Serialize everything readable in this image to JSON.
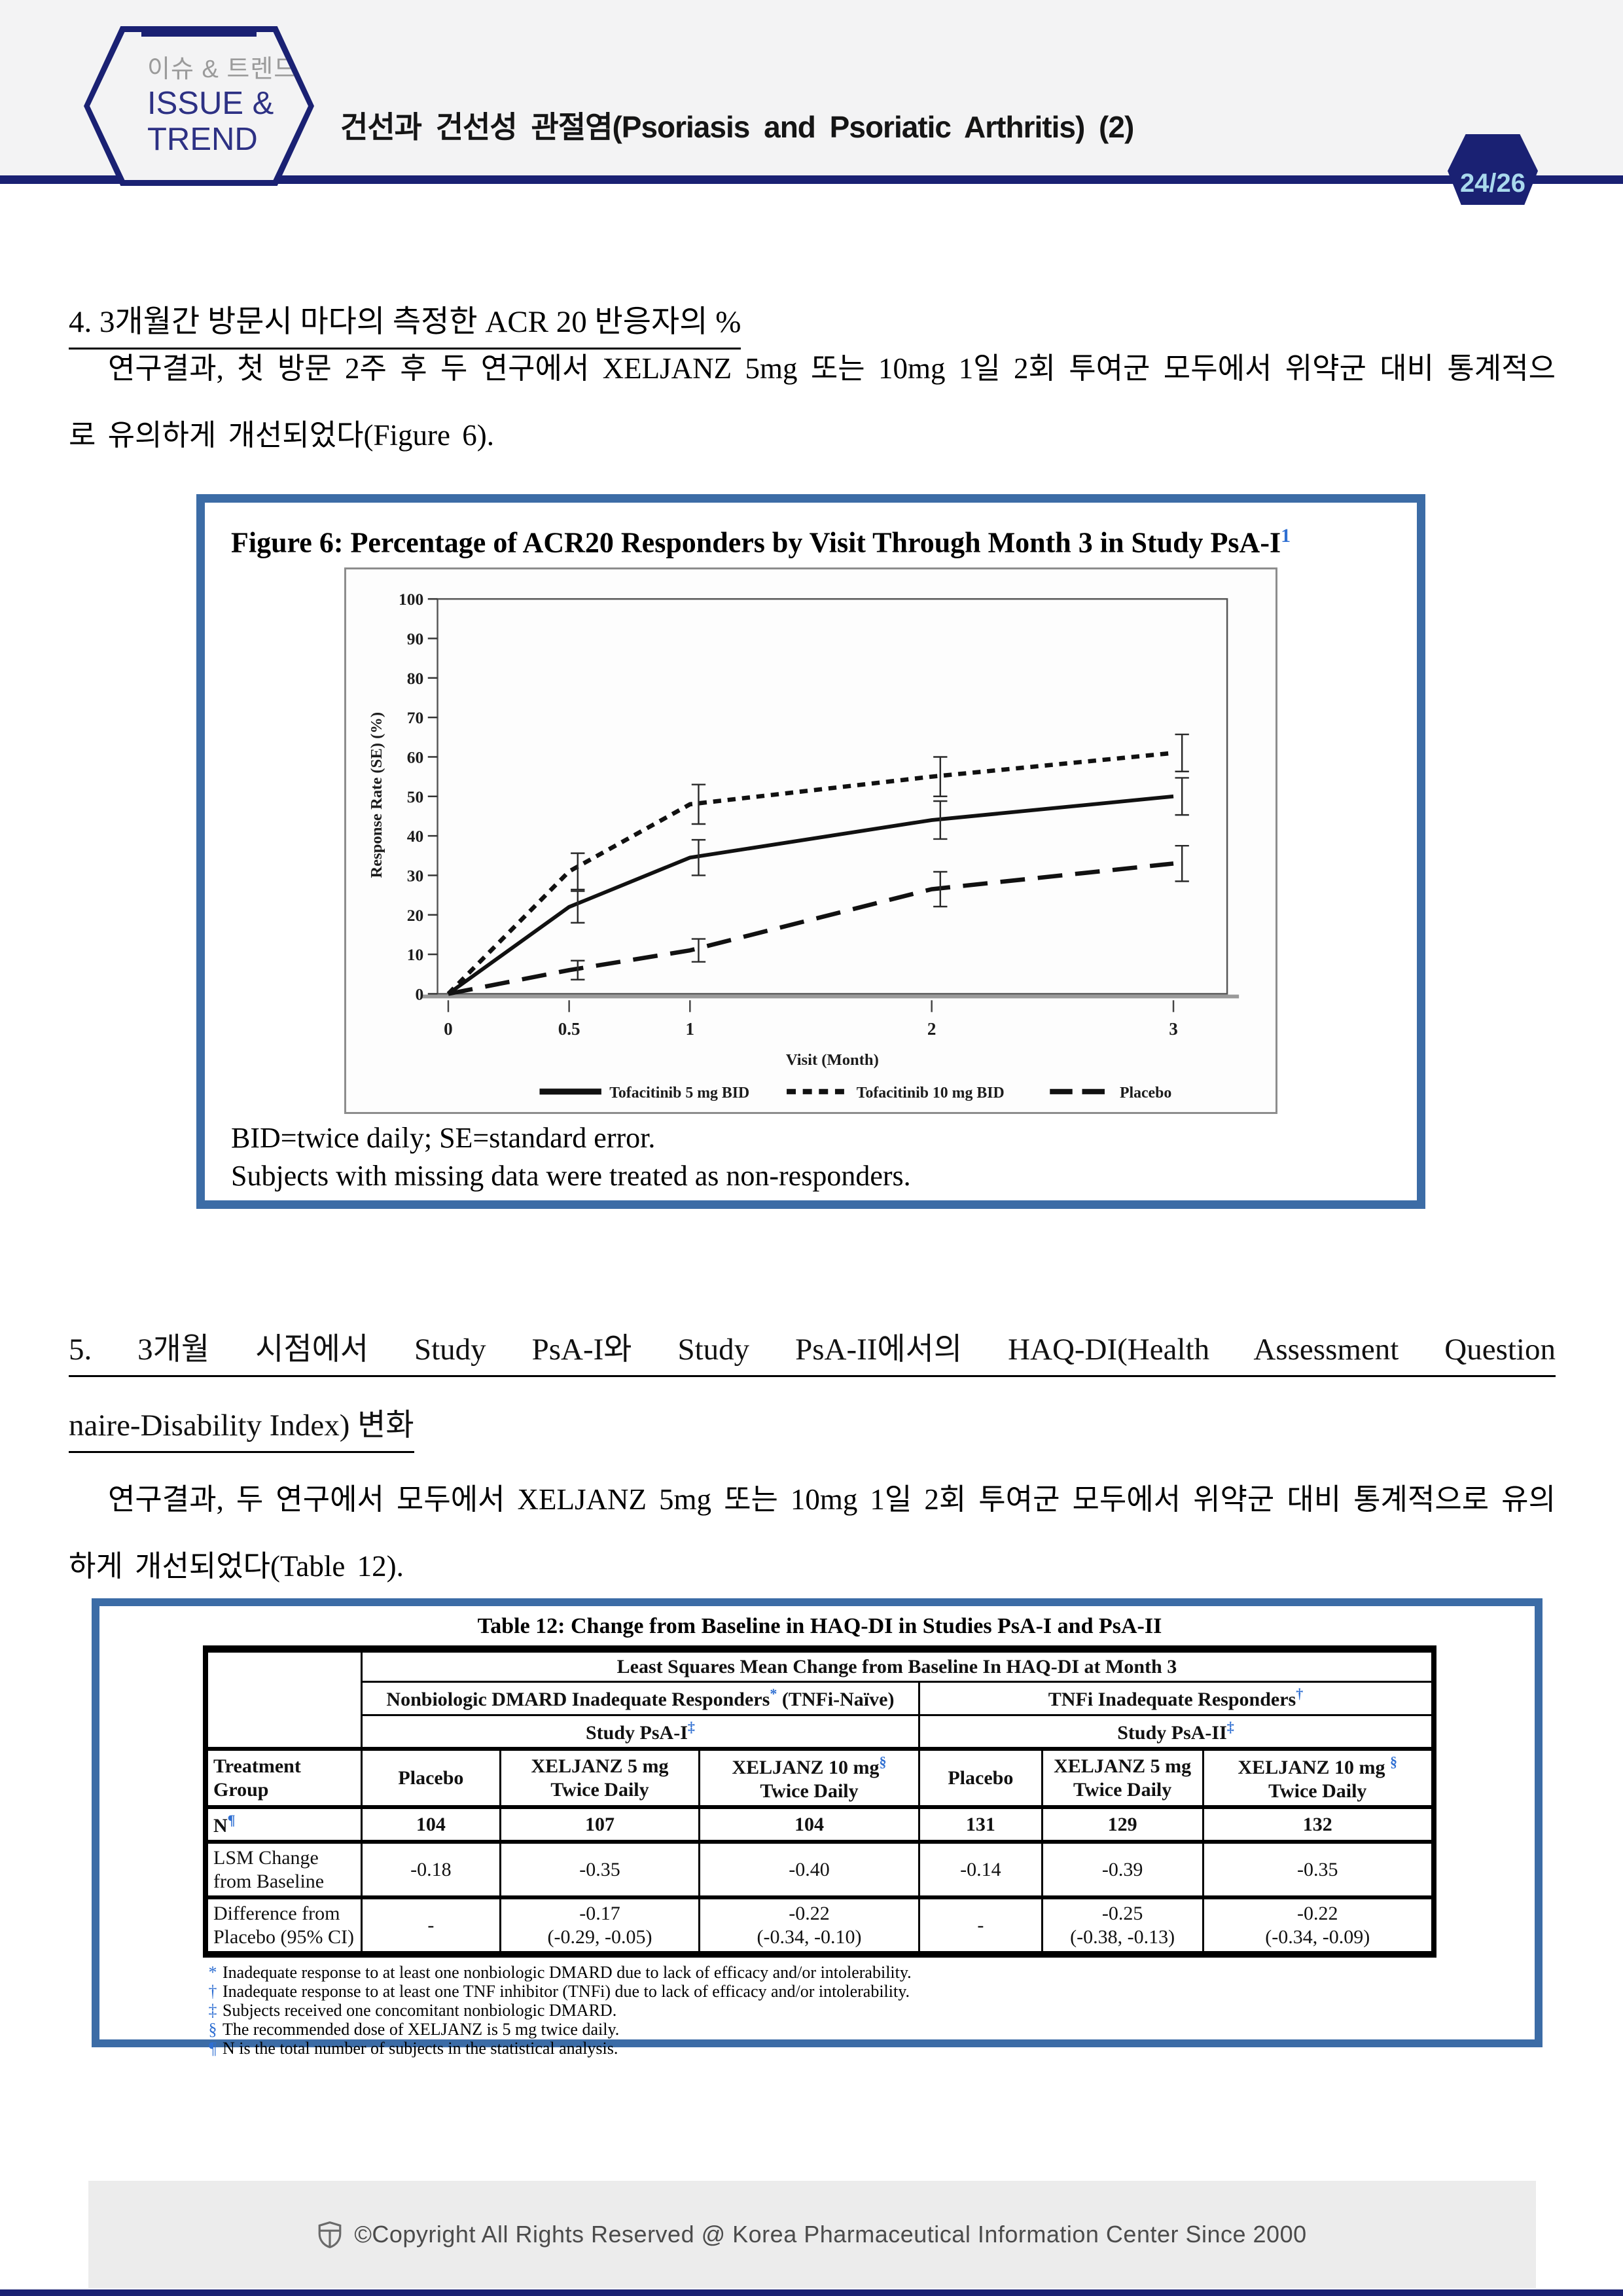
{
  "header": {
    "logo": {
      "line1": "이슈 & 트렌드",
      "line2": "ISSUE &",
      "line3": "TREND"
    },
    "title": "건선과 건선성 관절염(Psoriasis and Psoriatic Arthritis) (2)",
    "page_badge": "24/26",
    "navy_color": "#1a2173"
  },
  "section4": {
    "heading": "4. 3개월간 방문시 마다의 측정한 ACR 20 반응자의 %",
    "paragraph": "연구결과, 첫 방문 2주 후 두 연구에서 XELJANZ 5mg 또는 10mg 1일 2회 투여군 모두에서 위약군 대비 통계적으로 유의하게 개선되었다(Figure 6)."
  },
  "figure6": {
    "title": "Figure 6: Percentage of ACR20 Responders by Visit Through Month 3 in Study PsA-I",
    "title_sup": "1",
    "note_line1": "BID=twice daily; SE=standard error.",
    "note_line2": "Subjects with missing data were treated as non-responders.",
    "border_color": "#3c6ca6"
  },
  "chart_data": {
    "type": "line",
    "title": "Percentage of ACR20 Responders by Visit Through Month 3 in Study PsA-I",
    "xlabel": "Visit (Month)",
    "ylabel": "Response Rate (SE) (%)",
    "x": [
      0,
      0.5,
      1,
      2,
      3
    ],
    "ylim": [
      0,
      100
    ],
    "ytick_step": 10,
    "grid": false,
    "legend_position": "bottom",
    "series": [
      {
        "name": "Tofacitinib 5 mg BID",
        "style": "solid",
        "values": [
          0,
          22,
          34.5,
          44,
          50
        ],
        "se": [
          0,
          4,
          4.5,
          4.8,
          4.7
        ]
      },
      {
        "name": "Tofacitinib 10 mg BID",
        "style": "dotted",
        "values": [
          0,
          31,
          48,
          55,
          61
        ],
        "se": [
          0,
          4.6,
          5,
          5,
          4.7
        ]
      },
      {
        "name": "Placebo",
        "style": "long-dash",
        "values": [
          0,
          6,
          11,
          26.5,
          33
        ],
        "se": [
          0,
          2.4,
          2.9,
          4.4,
          4.5
        ]
      }
    ]
  },
  "section5": {
    "heading_line1": "5. 3개월 시점에서 Study PsA-I와 Study PsA-II에서의 HAQ-DI(Health Assessment Question",
    "heading_line2": "naire-Disability Index) 변화",
    "paragraph": "연구결과,  두 연구에서 모두에서 XELJANZ 5mg 또는 10mg 1일 2회 투여군 모두에서 위약군 대비 통계적으로 유의하게 개선되었다(Table 12)."
  },
  "table12": {
    "title": "Table 12: Change from Baseline in HAQ-DI in Studies PsA-I and PsA-II",
    "span_header": "Least Squares Mean Change from Baseline In HAQ-DI at Month 3",
    "group1": "Nonbiologic DMARD Inadequate Responders",
    "group1_sup": "*",
    "group1_tail": " (TNFi-Naïve)",
    "group2": "TNFi Inadequate Responders",
    "group2_sup": "†",
    "study1": "Study PsA-I",
    "study1_sup": "‡",
    "study2": "Study PsA-II",
    "study2_sup": "‡",
    "col_treatment": "Treatment Group",
    "col_placebo": "Placebo",
    "col_x5_line1": "XELJANZ 5 mg",
    "col_x5_line2": "Twice Daily",
    "col_x10_line1": "XELJANZ 10 mg",
    "col_x10_sup": "§",
    "col_x10_line2": "Twice Daily",
    "rows": {
      "n": {
        "label": "N",
        "sup": "¶",
        "v1": "104",
        "v2": "107",
        "v3": "104",
        "v4": "131",
        "v5": "129",
        "v6": "132"
      },
      "lsm": {
        "label": "LSM Change from Baseline",
        "v1": "-0.18",
        "v2": "-0.35",
        "v3": "-0.40",
        "v4": "-0.14",
        "v5": "-0.39",
        "v6": "-0.35"
      },
      "diff": {
        "label": "Difference from Placebo (95% CI)",
        "v1": "-",
        "v2a": "-0.17",
        "v2b": "(-0.29, -0.05)",
        "v3a": "-0.22",
        "v3b": "(-0.34, -0.10)",
        "v4": "-",
        "v5a": "-0.25",
        "v5b": "(-0.38, -0.13)",
        "v6a": "-0.22",
        "v6b": "(-0.34, -0.09)"
      }
    },
    "footnotes": [
      {
        "mark": "*",
        "text": "Inadequate response to at least one nonbiologic DMARD due to lack of efficacy and/or intolerability."
      },
      {
        "mark": "†",
        "text": "Inadequate response to at least one TNF inhibitor (TNFi) due to lack of efficacy and/or intolerability."
      },
      {
        "mark": "‡",
        "text": "Subjects received one concomitant nonbiologic DMARD."
      },
      {
        "mark": "§",
        "text": "The recommended dose of XELJANZ is 5 mg twice daily."
      },
      {
        "mark": "¶",
        "text": "N is the total number of subjects in the statistical analysis."
      }
    ],
    "accent_blue": "#2f6fd2"
  },
  "footer": {
    "copyright": "©Copyright All Rights Reserved @ Korea Pharmaceutical Information Center Since 2000"
  }
}
